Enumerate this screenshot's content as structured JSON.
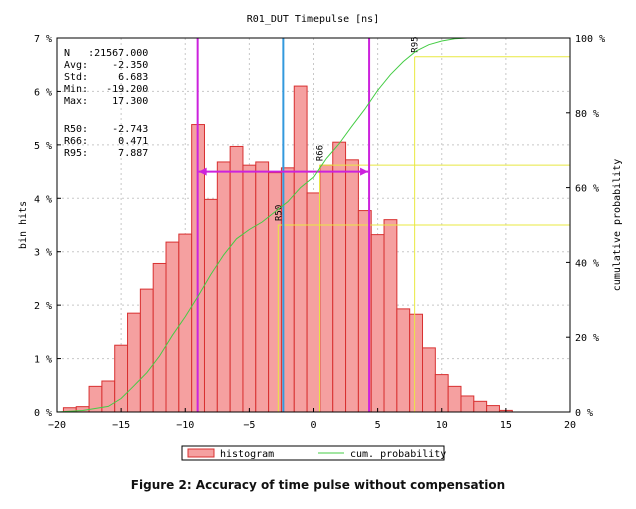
{
  "chart_data": {
    "type": "bar",
    "title": "R01_DUT Timepulse [ns]",
    "ylabel": "bin hits",
    "y2label": "cumulative probability",
    "xlim": [
      -20,
      20
    ],
    "ylim": [
      0,
      7
    ],
    "y2lim": [
      0,
      100
    ],
    "xticks": [
      -20,
      -15,
      -10,
      -5,
      0,
      5,
      10,
      15,
      20
    ],
    "xtick_labels": [
      "−20",
      "−15",
      "−10",
      "−5",
      "0",
      "5",
      "10",
      "15",
      "20"
    ],
    "yticks": [
      0,
      1,
      2,
      3,
      4,
      5,
      6,
      7
    ],
    "ytick_labels": [
      "0 %",
      "1 %",
      "2 %",
      "3 %",
      "4 %",
      "5 %",
      "6 %",
      "7 %"
    ],
    "y2ticks": [
      0,
      20,
      40,
      60,
      80,
      100
    ],
    "y2tick_labels": [
      "0 %",
      "20 %",
      "40 %",
      "60 %",
      "80 %",
      "100 %"
    ],
    "bin_width": 1,
    "histogram": {
      "name": "histogram",
      "color": "#f5a0a0",
      "edge": "#d83030",
      "x": [
        -19,
        -18,
        -17,
        -16,
        -15,
        -14,
        -13,
        -12,
        -11,
        -10,
        -9,
        -8,
        -7,
        -6,
        -5,
        -4,
        -3,
        -2,
        -1,
        0,
        1,
        2,
        3,
        4,
        5,
        6,
        7,
        8,
        9,
        10,
        11,
        12,
        13,
        14,
        15
      ],
      "values": [
        0.08,
        0.1,
        0.48,
        0.58,
        1.25,
        1.85,
        2.3,
        2.78,
        3.18,
        3.33,
        5.38,
        3.98,
        4.68,
        4.97,
        4.62,
        4.68,
        4.48,
        4.57,
        6.1,
        4.1,
        4.62,
        5.05,
        4.72,
        3.77,
        3.32,
        3.6,
        1.93,
        1.83,
        1.2,
        0.7,
        0.48,
        0.3,
        0.2,
        0.12,
        0.03
      ]
    },
    "cumulative": {
      "name": "cum. probability",
      "color": "#44cc44",
      "x": [
        -20,
        -18,
        -16,
        -15,
        -14,
        -13,
        -12,
        -11,
        -10,
        -9,
        -8,
        -7,
        -6,
        -5,
        -4,
        -3,
        -2,
        -1,
        0,
        1,
        2,
        3,
        4,
        5,
        6,
        7,
        8,
        9,
        10,
        11,
        12,
        13
      ],
      "y": [
        0,
        0.4,
        1.5,
        3.6,
        7,
        10.5,
        15,
        20.5,
        25.5,
        31,
        36.8,
        42,
        46.3,
        48.8,
        50.8,
        53.5,
        56.2,
        60,
        62.8,
        67.8,
        71.8,
        76.5,
        81,
        86,
        90.2,
        93.7,
        96.5,
        98.2,
        99.2,
        99.8,
        100,
        100
      ]
    },
    "markers": [
      {
        "label": "R50",
        "x": -2.743,
        "y": 50
      },
      {
        "label": "R66",
        "x": 0.471,
        "y": 66
      },
      {
        "label": "R95",
        "x": 7.887,
        "y": 95
      }
    ],
    "marker_color": "#e8e840",
    "std_lines": {
      "color": "#cc22dd",
      "x": [
        -9.033,
        4.333
      ],
      "arrow_y": 4.5
    },
    "mean_line": {
      "color": "#3399dd",
      "x": -2.35
    },
    "stats": {
      "lines1": [
        "N   :21567.000",
        "Avg:    -2.350",
        "Std:     6.683",
        "Min:   -19.200",
        "Max:    17.300"
      ],
      "lines2": [
        "R50:    -2.743",
        "R66:     0.471",
        "R95:     7.887"
      ]
    }
  },
  "legend": {
    "histogram_label": "histogram",
    "cum_label": "cum. probability"
  },
  "caption": "Figure 2: Accuracy of time pulse without compensation"
}
